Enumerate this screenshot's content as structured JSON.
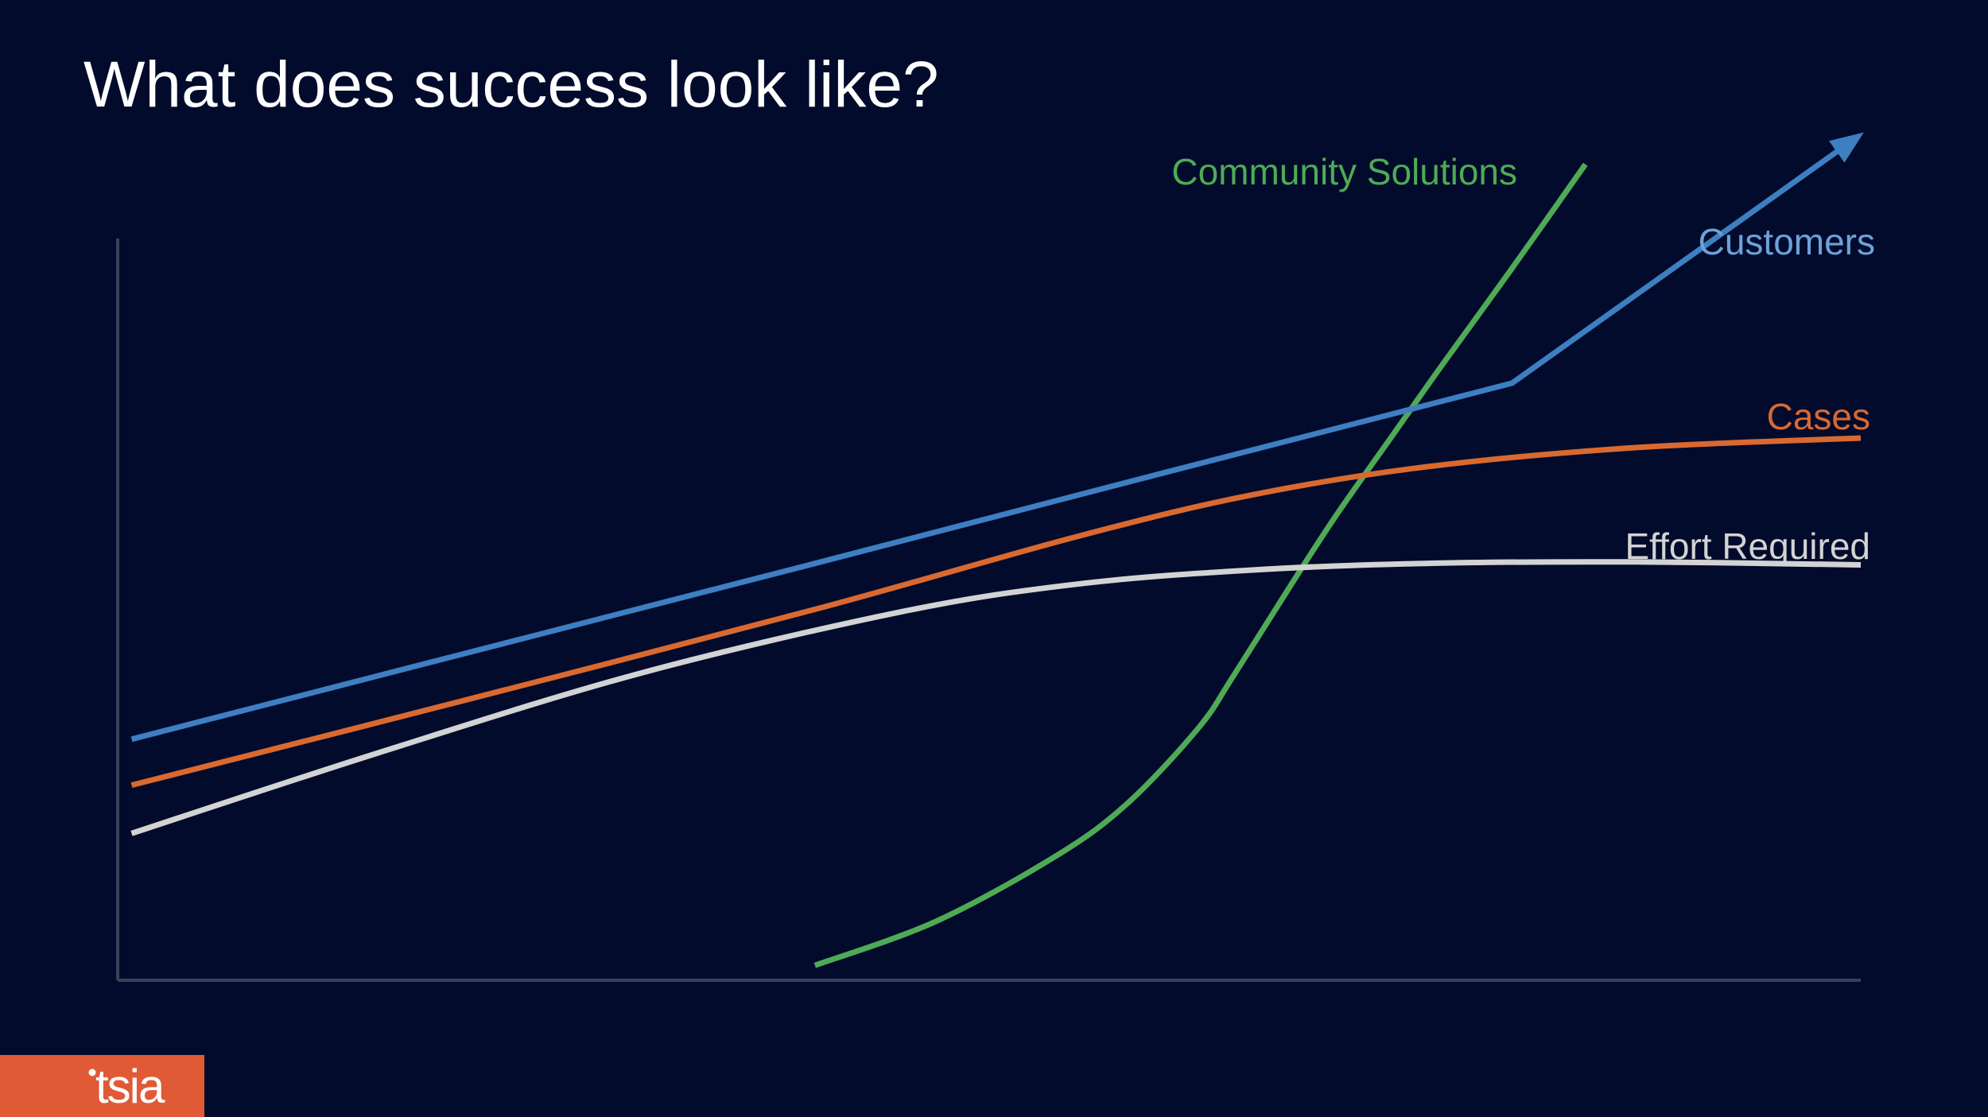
{
  "slide": {
    "title": "What does success look like?"
  },
  "logo": {
    "text": "tsia",
    "color": "#df5a35"
  },
  "colors": {
    "background": "#020b2c",
    "axis": "#3a4157"
  },
  "chart_data": {
    "type": "line",
    "title": "",
    "xlabel": "",
    "ylabel": "",
    "xlim": [
      0,
      100
    ],
    "ylim": [
      0,
      100
    ],
    "grid": false,
    "legend": "inline-labels",
    "series": [
      {
        "name": "Community Solutions",
        "color": "#4faa55",
        "x": [
          40,
          47,
          54,
          58,
          62,
          64,
          67.5,
          70,
          73,
          76,
          80,
          84.2
        ],
        "y": [
          2,
          8,
          17,
          24,
          34,
          41,
          54,
          63,
          73,
          83,
          96,
          110
        ]
      },
      {
        "name": "Customers",
        "color": "#3d7fc1",
        "x": [
          0.8,
          20,
          40,
          60,
          80,
          99.4
        ],
        "y": [
          32.5,
          44.1,
          56.2,
          68.4,
          80.5,
          113
        ],
        "arrow": true
      },
      {
        "name": "Cases",
        "color": "#d9692f",
        "x": [
          0.8,
          20,
          40,
          55,
          65,
          75,
          87,
          100
        ],
        "y": [
          26.3,
          37.8,
          50.0,
          59.8,
          65.4,
          69.2,
          71.8,
          73.1
        ]
      },
      {
        "name": "Effort Required",
        "color": "#d3d3d3",
        "x": [
          0.8,
          15,
          30,
          45,
          55,
          65,
          75,
          87,
          100
        ],
        "y": [
          19.8,
          30.7,
          41.4,
          49.7,
          53.4,
          55.3,
          56.2,
          56.4,
          56.0
        ]
      }
    ]
  }
}
